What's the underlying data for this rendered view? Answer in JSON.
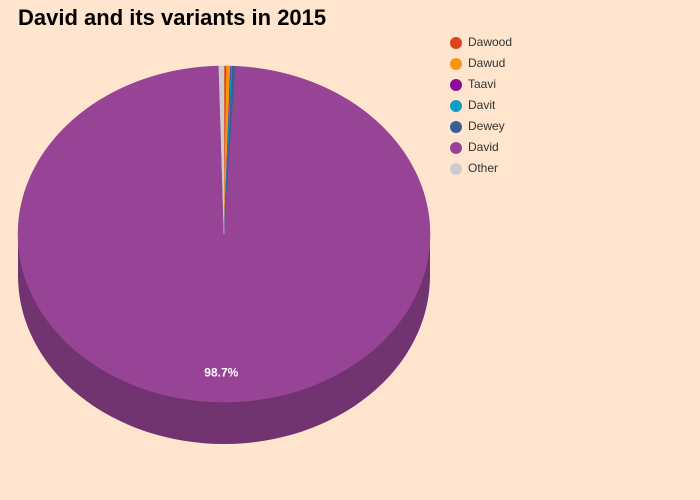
{
  "chart_data": {
    "type": "pie",
    "title": "David and its variants in 2015",
    "categories": [
      "Dawood",
      "Dawud",
      "Taavi",
      "Davit",
      "Dewey",
      "David",
      "Other"
    ],
    "values": [
      0.2,
      0.3,
      0.05,
      0.1,
      0.25,
      98.7,
      0.4
    ],
    "value_labels": [
      null,
      null,
      null,
      null,
      null,
      "98.7%",
      null
    ],
    "colors": [
      "#e0421b",
      "#f7960c",
      "#8e0c9a",
      "#0d9cc4",
      "#3a5f92",
      "#984496",
      "#cccccc"
    ],
    "legend": "top-right"
  }
}
